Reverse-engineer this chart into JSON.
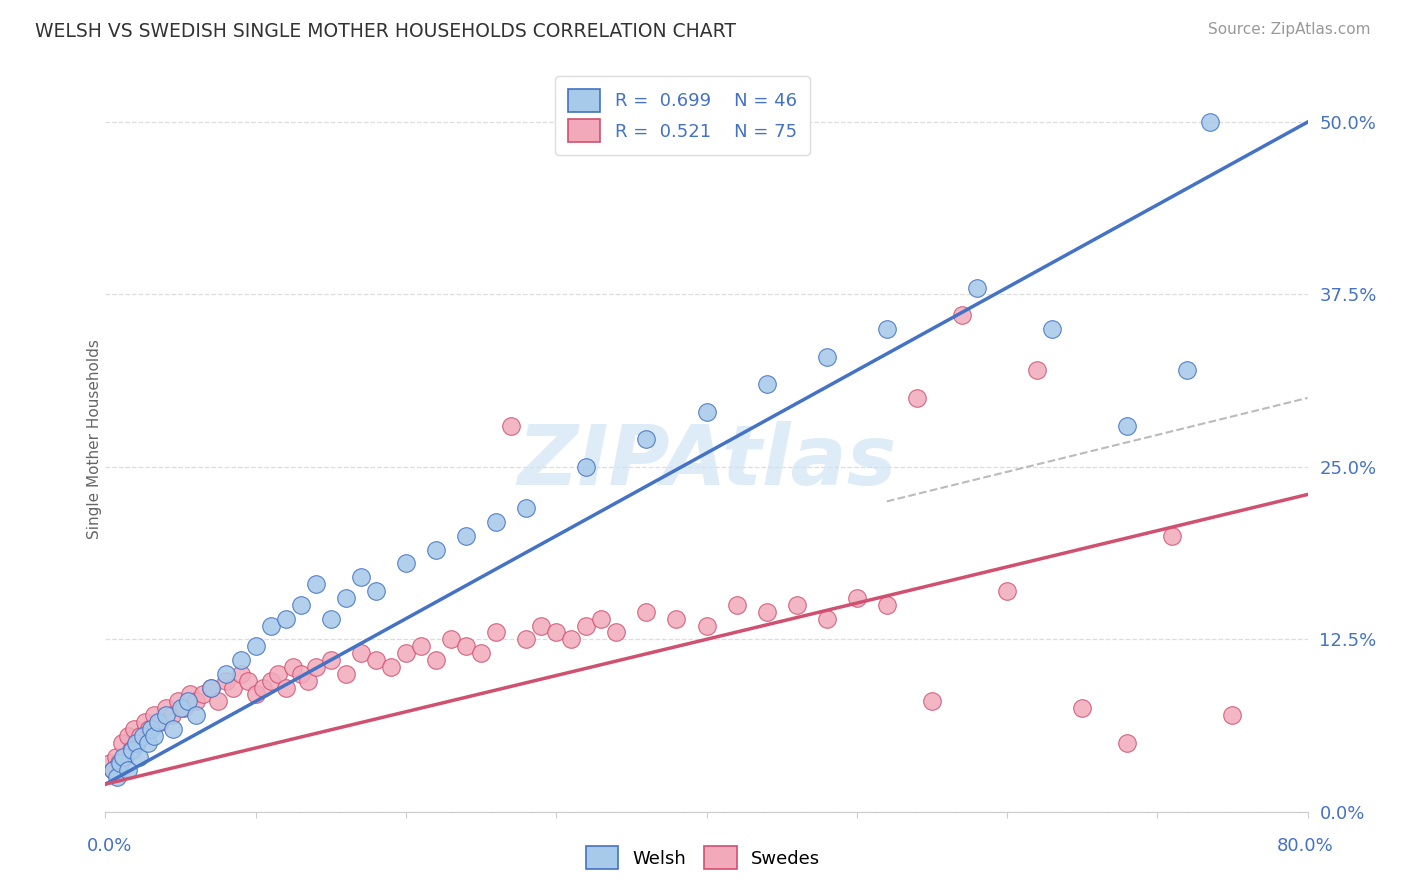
{
  "title": "WELSH VS SWEDISH SINGLE MOTHER HOUSEHOLDS CORRELATION CHART",
  "source": "Source: ZipAtlas.com",
  "ylabel": "Single Mother Households",
  "ytick_vals": [
    0.0,
    12.5,
    25.0,
    37.5,
    50.0
  ],
  "xmin": 0.0,
  "xmax": 80.0,
  "ymin": 0.0,
  "ymax": 54.0,
  "welsh_color": "#A8CAEA",
  "swedes_color": "#F2AABB",
  "welsh_edge": "#4472C4",
  "swedes_edge": "#D05070",
  "regression_welsh": "#4472C4",
  "regression_swedes": "#D05070",
  "label_color": "#4472C4",
  "grid_color": "#DDDDDD",
  "watermark": "ZIPAtlas",
  "welsh_R": 0.699,
  "welsh_N": 46,
  "swedes_R": 0.521,
  "swedes_N": 75,
  "welsh_x": [
    0.5,
    0.8,
    1.0,
    1.2,
    1.5,
    1.8,
    2.0,
    2.2,
    2.5,
    2.8,
    3.0,
    3.2,
    3.5,
    4.0,
    4.5,
    5.0,
    5.5,
    6.0,
    7.0,
    8.0,
    9.0,
    10.0,
    11.0,
    12.0,
    13.0,
    14.0,
    15.0,
    16.0,
    17.0,
    18.0,
    20.0,
    22.0,
    24.0,
    26.0,
    28.0,
    32.0,
    36.0,
    40.0,
    44.0,
    48.0,
    52.0,
    58.0,
    63.0,
    68.0,
    72.0,
    73.5
  ],
  "welsh_y": [
    3.0,
    2.5,
    3.5,
    4.0,
    3.0,
    4.5,
    5.0,
    4.0,
    5.5,
    5.0,
    6.0,
    5.5,
    6.5,
    7.0,
    6.0,
    7.5,
    8.0,
    7.0,
    9.0,
    10.0,
    11.0,
    12.0,
    13.5,
    14.0,
    15.0,
    16.5,
    14.0,
    15.5,
    17.0,
    16.0,
    18.0,
    19.0,
    20.0,
    21.0,
    22.0,
    25.0,
    27.0,
    29.0,
    31.0,
    33.0,
    35.0,
    38.0,
    35.0,
    28.0,
    32.0,
    50.0
  ],
  "swedes_x": [
    0.3,
    0.5,
    0.7,
    0.9,
    1.1,
    1.3,
    1.5,
    1.7,
    1.9,
    2.1,
    2.3,
    2.6,
    2.9,
    3.2,
    3.6,
    4.0,
    4.4,
    4.8,
    5.2,
    5.6,
    6.0,
    6.5,
    7.0,
    7.5,
    8.0,
    8.5,
    9.0,
    9.5,
    10.0,
    10.5,
    11.0,
    11.5,
    12.0,
    12.5,
    13.0,
    13.5,
    14.0,
    15.0,
    16.0,
    17.0,
    18.0,
    19.0,
    20.0,
    21.0,
    22.0,
    23.0,
    24.0,
    25.0,
    26.0,
    27.0,
    28.0,
    29.0,
    30.0,
    31.0,
    32.0,
    33.0,
    34.0,
    36.0,
    38.0,
    40.0,
    42.0,
    44.0,
    46.0,
    48.0,
    50.0,
    52.0,
    54.0,
    55.0,
    57.0,
    60.0,
    62.0,
    65.0,
    68.0,
    71.0,
    75.0
  ],
  "swedes_y": [
    3.5,
    3.0,
    4.0,
    3.5,
    5.0,
    4.0,
    5.5,
    4.5,
    6.0,
    5.0,
    5.5,
    6.5,
    6.0,
    7.0,
    6.5,
    7.5,
    7.0,
    8.0,
    7.5,
    8.5,
    8.0,
    8.5,
    9.0,
    8.0,
    9.5,
    9.0,
    10.0,
    9.5,
    8.5,
    9.0,
    9.5,
    10.0,
    9.0,
    10.5,
    10.0,
    9.5,
    10.5,
    11.0,
    10.0,
    11.5,
    11.0,
    10.5,
    11.5,
    12.0,
    11.0,
    12.5,
    12.0,
    11.5,
    13.0,
    28.0,
    12.5,
    13.5,
    13.0,
    12.5,
    13.5,
    14.0,
    13.0,
    14.5,
    14.0,
    13.5,
    15.0,
    14.5,
    15.0,
    14.0,
    15.5,
    15.0,
    30.0,
    8.0,
    36.0,
    16.0,
    32.0,
    7.5,
    5.0,
    20.0,
    7.0
  ],
  "ref_line_x": [
    52.0,
    80.0
  ],
  "ref_line_y": [
    22.5,
    30.0
  ]
}
